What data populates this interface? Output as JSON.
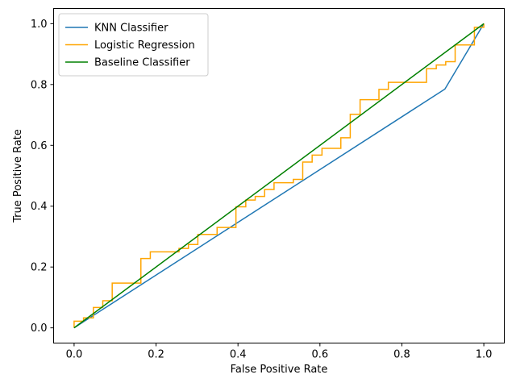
{
  "chart_data": {
    "type": "line",
    "title": "",
    "xlabel": "False Positive Rate",
    "ylabel": "True Positive Rate",
    "xlim": [
      -0.05,
      1.05
    ],
    "ylim": [
      -0.05,
      1.05
    ],
    "xticks": [
      0.0,
      0.2,
      0.4,
      0.6,
      0.8,
      1.0
    ],
    "yticks": [
      0.0,
      0.2,
      0.4,
      0.6,
      0.8,
      1.0
    ],
    "xtick_labels": [
      "0.0",
      "0.2",
      "0.4",
      "0.6",
      "0.8",
      "1.0"
    ],
    "ytick_labels": [
      "0.0",
      "0.2",
      "0.4",
      "0.6",
      "0.8",
      "1.0"
    ],
    "grid": false,
    "legend_position": "top-left",
    "series": [
      {
        "name": "KNN Classifier",
        "color": "#1f77b4",
        "x": [
          0.0,
          0.905,
          1.0
        ],
        "y": [
          0.0,
          0.785,
          1.0
        ]
      },
      {
        "name": "Logistic Regression",
        "color": "#ffa500",
        "x": [
          0.0,
          0.0,
          0.023,
          0.023,
          0.047,
          0.047,
          0.07,
          0.07,
          0.093,
          0.093,
          0.163,
          0.163,
          0.186,
          0.186,
          0.256,
          0.256,
          0.279,
          0.279,
          0.302,
          0.302,
          0.349,
          0.349,
          0.395,
          0.395,
          0.419,
          0.419,
          0.442,
          0.442,
          0.465,
          0.465,
          0.488,
          0.488,
          0.535,
          0.535,
          0.558,
          0.558,
          0.581,
          0.581,
          0.605,
          0.605,
          0.651,
          0.651,
          0.674,
          0.674,
          0.698,
          0.698,
          0.744,
          0.744,
          0.767,
          0.767,
          0.86,
          0.86,
          0.884,
          0.884,
          0.907,
          0.907,
          0.93,
          0.93,
          0.977,
          0.977,
          1.0,
          1.0
        ],
        "y": [
          0.0,
          0.022,
          0.022,
          0.033,
          0.033,
          0.067,
          0.067,
          0.089,
          0.089,
          0.147,
          0.147,
          0.228,
          0.228,
          0.25,
          0.25,
          0.261,
          0.261,
          0.274,
          0.274,
          0.307,
          0.307,
          0.33,
          0.33,
          0.398,
          0.398,
          0.42,
          0.42,
          0.432,
          0.432,
          0.455,
          0.455,
          0.477,
          0.477,
          0.488,
          0.488,
          0.545,
          0.545,
          0.568,
          0.568,
          0.59,
          0.59,
          0.625,
          0.625,
          0.702,
          0.702,
          0.75,
          0.75,
          0.784,
          0.784,
          0.807,
          0.807,
          0.852,
          0.852,
          0.864,
          0.864,
          0.875,
          0.875,
          0.93,
          0.93,
          0.988,
          0.988,
          1.0
        ]
      },
      {
        "name": "Baseline Classifier",
        "color": "#008000",
        "x": [
          0.0,
          1.0
        ],
        "y": [
          0.0,
          1.0
        ]
      }
    ]
  }
}
